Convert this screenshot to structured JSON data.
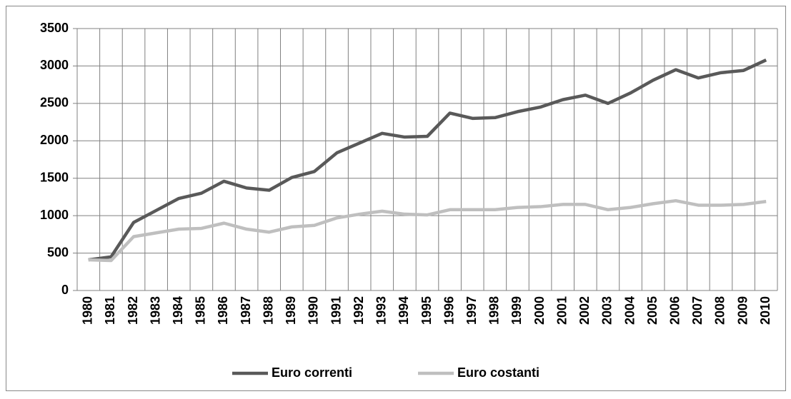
{
  "chart_data": {
    "type": "line",
    "categories": [
      "1980",
      "1981",
      "1982",
      "1983",
      "1984",
      "1985",
      "1986",
      "1987",
      "1988",
      "1989",
      "1990",
      "1991",
      "1992",
      "1993",
      "1994",
      "1995",
      "1996",
      "1997",
      "1998",
      "1999",
      "2000",
      "2001",
      "2002",
      "2003",
      "2004",
      "2005",
      "2006",
      "2007",
      "2008",
      "2009",
      "2010"
    ],
    "series": [
      {
        "name": "Euro correnti",
        "color": "#595959",
        "values": [
          410,
          450,
          910,
          1070,
          1230,
          1300,
          1460,
          1370,
          1340,
          1510,
          1590,
          1840,
          1970,
          2100,
          2050,
          2060,
          2370,
          2300,
          2310,
          2390,
          2450,
          2550,
          2610,
          2500,
          2640,
          2810,
          2950,
          2840,
          2910,
          2940,
          3080
        ]
      },
      {
        "name": "Euro costanti",
        "color": "#bfbfbf",
        "values": [
          410,
          400,
          720,
          770,
          820,
          830,
          900,
          820,
          780,
          850,
          870,
          970,
          1020,
          1060,
          1020,
          1010,
          1080,
          1080,
          1080,
          1110,
          1120,
          1150,
          1150,
          1080,
          1110,
          1160,
          1200,
          1140,
          1140,
          1150,
          1190
        ]
      }
    ],
    "ylim": [
      0,
      3500
    ],
    "yticks": [
      0,
      500,
      1000,
      1500,
      2000,
      2500,
      3000,
      3500
    ],
    "grid": true,
    "legend": "bottom"
  }
}
